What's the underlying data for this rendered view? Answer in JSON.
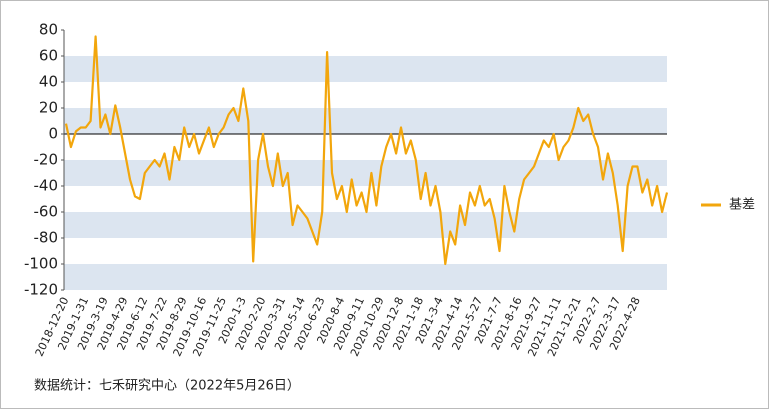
{
  "chart_data": {
    "type": "line",
    "categories": [
      "2018-12-20",
      null,
      null,
      null,
      "2019-1-31",
      null,
      null,
      null,
      "2019-3-19",
      null,
      null,
      null,
      "2019-4-29",
      null,
      null,
      null,
      "2019-6-12",
      null,
      null,
      null,
      "2019-7-22",
      null,
      null,
      null,
      "2019-8-29",
      null,
      null,
      null,
      "2019-10-16",
      null,
      null,
      null,
      "2019-11-25",
      null,
      null,
      null,
      "2020-1-3",
      null,
      null,
      null,
      "2020-2-20",
      null,
      null,
      null,
      "2020-3-31",
      null,
      null,
      null,
      "2020-5-14",
      null,
      null,
      null,
      "2020-6-23",
      null,
      null,
      null,
      "2020-8-4",
      null,
      null,
      null,
      "2020-9-11",
      null,
      null,
      null,
      "2020-10-29",
      null,
      null,
      null,
      "2020-12-8",
      null,
      null,
      null,
      "2021-1-18",
      null,
      null,
      null,
      "2021-3-4",
      null,
      null,
      null,
      "2021-4-14",
      null,
      null,
      null,
      "2021-5-27",
      null,
      null,
      null,
      "2021-7-7",
      null,
      null,
      null,
      "2021-8-16",
      null,
      null,
      null,
      "2021-9-27",
      null,
      null,
      null,
      "2021-11-11",
      null,
      null,
      null,
      "2021-12-21",
      null,
      null,
      null,
      "2022-2-7",
      null,
      null,
      null,
      "2022-3-17",
      null,
      null,
      null,
      "2022-4-28",
      null,
      null,
      null,
      null,
      null,
      null
    ],
    "series": [
      {
        "name": "基差",
        "color": "#f2a60c",
        "values": [
          8,
          -10,
          2,
          5,
          5,
          10,
          75,
          5,
          15,
          0,
          22,
          5,
          -15,
          -35,
          -48,
          -50,
          -30,
          -25,
          -20,
          -25,
          -15,
          -35,
          -10,
          -20,
          5,
          -10,
          0,
          -15,
          -5,
          5,
          -10,
          0,
          5,
          15,
          20,
          10,
          35,
          10,
          -98,
          -20,
          0,
          -25,
          -40,
          -15,
          -40,
          -30,
          -70,
          -55,
          -60,
          -65,
          -75,
          -85,
          -60,
          63,
          -30,
          -50,
          -40,
          -60,
          -35,
          -55,
          -45,
          -60,
          -30,
          -55,
          -25,
          -10,
          0,
          -15,
          5,
          -15,
          -5,
          -20,
          -50,
          -30,
          -55,
          -40,
          -60,
          -100,
          -75,
          -85,
          -55,
          -70,
          -45,
          -55,
          -40,
          -55,
          -50,
          -65,
          -90,
          -40,
          -60,
          -75,
          -50,
          -35,
          -30,
          -25,
          -15,
          -5,
          -10,
          0,
          -20,
          -10,
          -5,
          5,
          20,
          10,
          15,
          0,
          -10,
          -35,
          -15,
          -30,
          -55,
          -90,
          -40,
          -25,
          -25,
          -45,
          -35,
          -55,
          -40,
          -60,
          -45
        ]
      }
    ],
    "ylim": [
      -120,
      80
    ],
    "yticks": [
      -120,
      -100,
      -80,
      -60,
      -40,
      -20,
      0,
      20,
      40,
      60,
      80
    ],
    "grid": "bands",
    "legend": "right",
    "source": "数据统计：七禾研究中心（2022年5月26日）"
  }
}
